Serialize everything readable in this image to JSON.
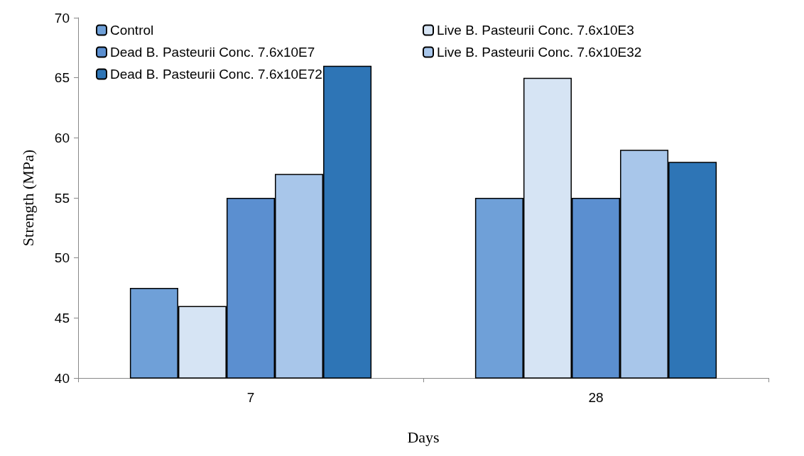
{
  "chart_data": {
    "type": "bar",
    "xlabel": "Days",
    "ylabel": "Strength (MPa)",
    "categories": [
      "7",
      "28"
    ],
    "series": [
      {
        "name": "Control",
        "color": "#6fa0d8",
        "values": [
          47.5,
          55
        ]
      },
      {
        "name": "Live B. Pasteurii Conc. 7.6x10E3",
        "color": "#d6e4f4",
        "values": [
          46,
          65
        ]
      },
      {
        "name": "Dead B. Pasteurii Conc. 7.6x10E7",
        "color": "#5b8fd0",
        "values": [
          55,
          55
        ]
      },
      {
        "name": "Live B. Pasteurii Conc. 7.6x10E32",
        "color": "#a8c6ea",
        "values": [
          57,
          59
        ]
      },
      {
        "name": "Dead B. Pasteurii Conc. 7.6x10E72",
        "color": "#2e75b6",
        "values": [
          66,
          58
        ]
      }
    ],
    "ylim": [
      40,
      70
    ],
    "yticks": [
      40,
      45,
      50,
      55,
      60,
      65,
      70
    ],
    "grid": false,
    "legend": "top"
  }
}
